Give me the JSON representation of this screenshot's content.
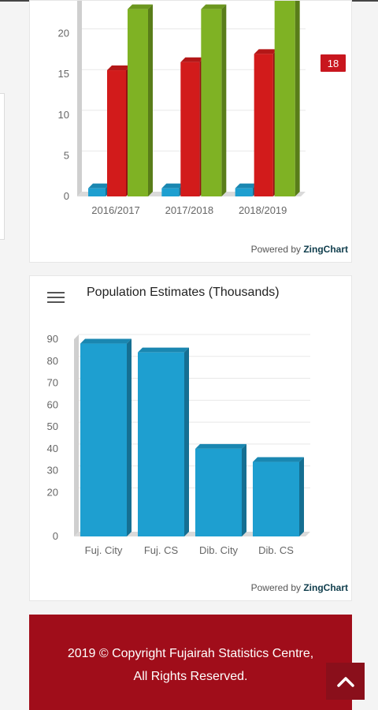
{
  "chart1": {
    "chart_data": {
      "type": "bar",
      "categories": [
        "2016/2017",
        "2017/2018",
        "2018/2019"
      ],
      "series": [
        {
          "values": [
            1,
            1,
            1
          ],
          "color": "#1e9fd0"
        },
        {
          "values": [
            15.5,
            16.5,
            17.5
          ],
          "color": "#d21b1b"
        },
        {
          "values": [
            23,
            23,
            24.5
          ],
          "color": "#7fb224"
        }
      ],
      "ylim": [
        0,
        25
      ],
      "yticks": [
        "0",
        "5",
        "10",
        "15",
        "20"
      ],
      "tooltip": "18"
    },
    "powered_prefix": "Powered by ",
    "powered_brand": "ZingChart"
  },
  "chart2": {
    "title": "Population Estimates (Thousands)",
    "chart_data": {
      "type": "bar",
      "categories": [
        "Fuj. City",
        "Fuj. CS",
        "Dib. City",
        "Dib. CS"
      ],
      "values": [
        88,
        84,
        40,
        34
      ],
      "color": "#1e9fd0",
      "ylim": [
        0,
        90
      ],
      "yticks": [
        "0",
        "20",
        "30",
        "40",
        "50",
        "60",
        "70",
        "80",
        "90"
      ]
    },
    "powered_prefix": "Powered by ",
    "powered_brand": "ZingChart"
  },
  "footer": {
    "line1": "2019 © Copyright Fujairah Statistics Centre,",
    "line2": "All Rights Reserved."
  },
  "icons": {
    "menu": "hamburger-icon",
    "scroll_top": "chevron-up-icon"
  }
}
